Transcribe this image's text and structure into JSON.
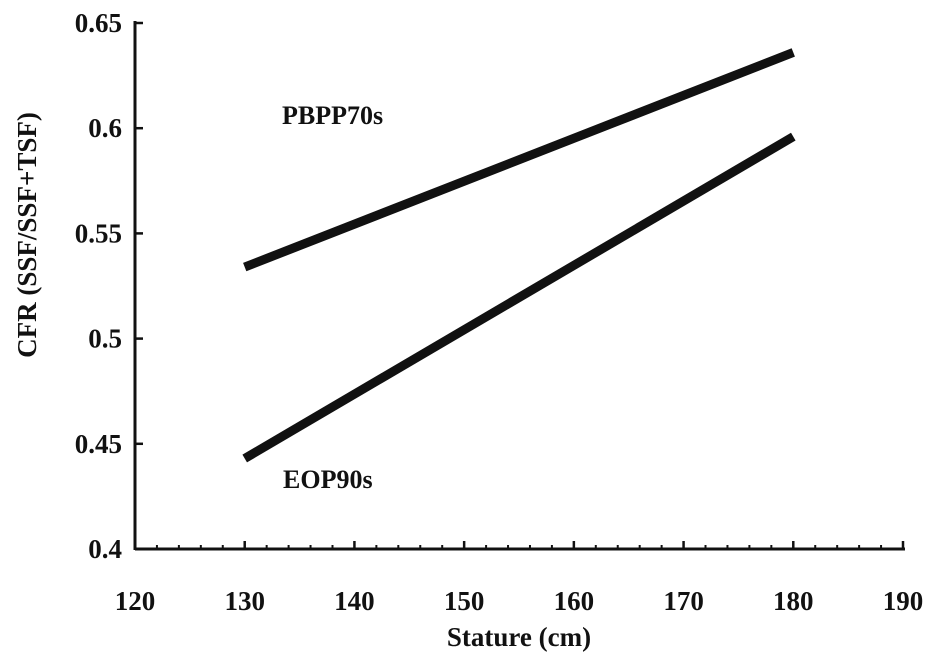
{
  "chart_data": {
    "type": "line",
    "xlabel": "Stature (cm)",
    "ylabel": "CFR (SSF/SSF+TSF)",
    "xlim": [
      120,
      190
    ],
    "ylim": [
      0.4,
      0.65
    ],
    "x_ticks": [
      "120",
      "130",
      "140",
      "150",
      "160",
      "170",
      "180",
      "190"
    ],
    "y_ticks": [
      "0.4",
      "0.45",
      "0.5",
      "0.55",
      "0.6",
      "0.65"
    ],
    "grid": false,
    "line_color": "#111111",
    "series": [
      {
        "name": "PBPP70s",
        "x": [
          130,
          180
        ],
        "y": [
          0.534,
          0.636
        ]
      },
      {
        "name": "EOP90s",
        "x": [
          130,
          180
        ],
        "y": [
          0.443,
          0.596
        ]
      }
    ]
  }
}
